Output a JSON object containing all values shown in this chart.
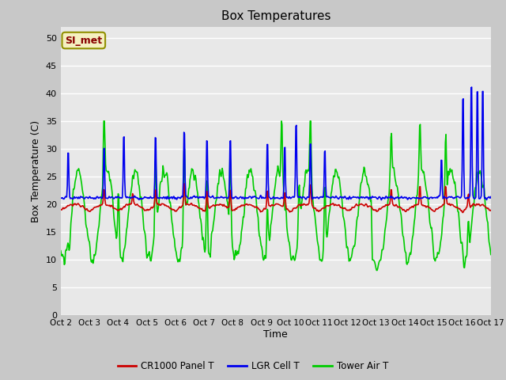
{
  "title": "Box Temperatures",
  "xlabel": "Time",
  "ylabel": "Box Temperature (C)",
  "ylim": [
    0,
    52
  ],
  "yticks": [
    0,
    5,
    10,
    15,
    20,
    25,
    30,
    35,
    40,
    45,
    50
  ],
  "x_labels": [
    "Oct 2",
    "Oct 3",
    "Oct 4",
    "Oct 5",
    "Oct 6",
    "Oct 7",
    "Oct 8",
    "Oct 9",
    "Oct 10",
    "Oct 11",
    "Oct 12",
    "Oct 13",
    "Oct 14",
    "Oct 15",
    "Oct 16",
    "Oct 17"
  ],
  "legend_labels": [
    "CR1000 Panel T",
    "LGR Cell T",
    "Tower Air T"
  ],
  "legend_colors": [
    "#cc0000",
    "#0000ee",
    "#00cc00"
  ],
  "watermark_text": "SI_met",
  "plot_bg_color": "#e8e8e8",
  "grid_color": "#ffffff",
  "line_width": 1.2,
  "figsize": [
    6.4,
    4.8
  ],
  "dpi": 100
}
